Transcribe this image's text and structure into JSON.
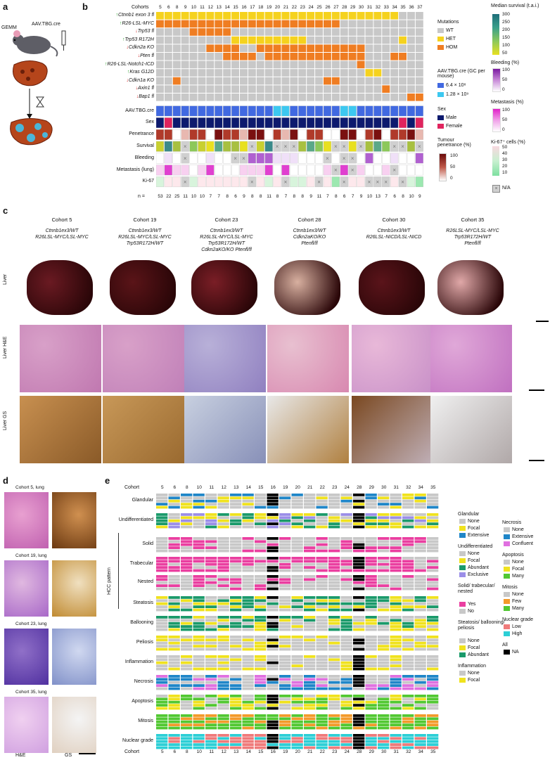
{
  "panels": [
    "a",
    "b",
    "c",
    "d",
    "e"
  ],
  "panel_a": {
    "gemm": "GEMM",
    "vector": "AAV.TBG.cre"
  },
  "panel_b": {
    "cohorts_label": "Cohorts",
    "cohorts": [
      "5",
      "6",
      "8",
      "9",
      "10",
      "11",
      "12",
      "13",
      "14",
      "15",
      "16",
      "17",
      "18",
      "19",
      "20",
      "21",
      "22",
      "23",
      "24",
      "25",
      "26",
      "27",
      "28",
      "29",
      "30",
      "31",
      "32",
      "33",
      "34",
      "35",
      "36",
      "37"
    ],
    "n_label": "n =",
    "n_values": [
      "53",
      "22",
      "25",
      "11",
      "10",
      "10",
      "7",
      "7",
      "8",
      "6",
      "9",
      "8",
      "8",
      "11",
      "8",
      "7",
      "8",
      "8",
      "9",
      "11",
      "7",
      "8",
      "6",
      "7",
      "9",
      "10",
      "13",
      "7",
      "6",
      "8",
      "10",
      "9"
    ],
    "genes": [
      {
        "label": "Ctnnb1 exon 3 fl",
        "dir": "up"
      },
      {
        "label": "R26-LSL-MYC",
        "dir": "up"
      },
      {
        "label": "Trp53 fl",
        "dir": "down"
      },
      {
        "label": "Trp53 R172H",
        "dir": "up"
      },
      {
        "label": "Cdkn2a KO",
        "dir": "down"
      },
      {
        "label": "Pten fl",
        "dir": "down"
      },
      {
        "label": "R26-LSL-Notch1-ICD",
        "dir": "up"
      },
      {
        "label": "Kras G12D",
        "dir": "up"
      },
      {
        "label": "Cdkn1a KO",
        "dir": "down"
      },
      {
        "label": "Axin1 fl",
        "dir": "down"
      },
      {
        "label": "Bap1 fl",
        "dir": "down"
      }
    ],
    "annotation_rows": [
      "AAV.TBG.cre",
      "Sex",
      "Penetrance",
      "Survival",
      "Bleeding",
      "Metastasis (lung)",
      "Ki-67"
    ],
    "legends": {
      "mutations_title": "Mutations",
      "mutations": [
        {
          "label": "WT",
          "color": "#c8c8c8"
        },
        {
          "label": "HET",
          "color": "#f5d21e"
        },
        {
          "label": "HOM",
          "color": "#ef7d22"
        }
      ],
      "aav_title": "AAV.TBG.cre (GC per mouse)",
      "aav": [
        {
          "label": "6.4 × 10⁸",
          "color": "#4169e1"
        },
        {
          "label": "1.28 × 10⁹",
          "color": "#3cc8f0"
        }
      ],
      "sex_title": "Sex",
      "sex": [
        {
          "label": "Male",
          "color": "#0d1a6e"
        },
        {
          "label": "Female",
          "color": "#e0245e"
        }
      ],
      "penetrance_title": "Tumour penetrance (%)",
      "penetrance_ticks": [
        "100",
        "50",
        "0"
      ],
      "survival_title": "Median survival (t.a.i.)",
      "survival_ticks": [
        "300",
        "250",
        "200",
        "150",
        "100",
        "50"
      ],
      "bleeding_title": "Bleeding (%)",
      "bleeding_ticks": [
        "100",
        "50",
        "0"
      ],
      "metastasis_title": "Metastasis (%)",
      "metastasis_ticks": [
        "100",
        "50",
        "0"
      ],
      "ki67_title": "Ki-67⁺ cells (%)",
      "ki67_ticks": [
        "50",
        "40",
        "30",
        "20",
        "10"
      ],
      "na_label": "N/A"
    }
  },
  "panel_c": {
    "cohorts": [
      {
        "title": "Cohort 5",
        "geno": [
          "Ctnnb1ex3/WT",
          "R26LSL-MYC/LSL-MYC"
        ]
      },
      {
        "title": "Cohort 19",
        "geno": [
          "Ctnnb1ex3/WT",
          "R26LSL-MYC/LSL-MYC",
          "Trp53R172H/WT"
        ]
      },
      {
        "title": "Cohort 23",
        "geno": [
          "Ctnnb1ex3/WT",
          "R26LSL-MYC/LSL-MYC",
          "Trp53R172H/WT",
          "Cdkn2aKO/KO Ptenfl/fl"
        ]
      },
      {
        "title": "Cohort 28",
        "geno": [
          "Ctnnb1ex3/WT",
          "Cdkn2aKO/KO",
          "Ptenfl/fl"
        ]
      },
      {
        "title": "Cohort 30",
        "geno": [
          "Ctnnb1ex3/WT",
          "R26LSL-NICD/LSL-NICD"
        ]
      },
      {
        "title": "Cohort 35",
        "geno": [
          "R26LSL-MYC/LSL-MYC",
          "Trp53R172H/WT",
          "Ptenfl/fl"
        ]
      }
    ],
    "rows": [
      "Liver",
      "Liver H&E",
      "Liver GS"
    ]
  },
  "panel_d": {
    "titles": [
      "Cohort 5, lung",
      "Cohort 19, lung",
      "Cohort 23, lung",
      "Cohort 35, lung"
    ],
    "xlabels": [
      "H&E",
      "GS"
    ]
  },
  "panel_e": {
    "cohort_label": "Cohort",
    "cohorts": [
      "5",
      "6",
      "8",
      "10",
      "11",
      "12",
      "13",
      "14",
      "15",
      "16",
      "19",
      "20",
      "21",
      "22",
      "23",
      "24",
      "28",
      "29",
      "30",
      "31",
      "32",
      "34",
      "35"
    ],
    "rows": [
      "Glandular",
      "Undifferentiated",
      "Solid",
      "Trabecular",
      "Nested",
      "Steatosis",
      "Ballooning",
      "Peliosis",
      "Inflammation",
      "Necrosis",
      "Apoptosis",
      "Mitosis",
      "Nuclear grade"
    ],
    "hcc_pattern": "HCC pattern",
    "legend_col1": [
      {
        "title": "Glandular",
        "items": [
          {
            "label": "None",
            "color": "#c8c8c8"
          },
          {
            "label": "Focal",
            "color": "#f0e21e"
          },
          {
            "label": "Extensive",
            "color": "#1f86c8"
          }
        ]
      },
      {
        "title": "Undifferentiated",
        "items": [
          {
            "label": "None",
            "color": "#c8c8c8"
          },
          {
            "label": "Focal",
            "color": "#f0e21e"
          },
          {
            "label": "Abundant",
            "color": "#1a9a6a"
          },
          {
            "label": "Exclusive",
            "color": "#9b8ee8"
          }
        ]
      },
      {
        "title": "Solid/ trabecular/ nested",
        "items": [
          {
            "label": "Yes",
            "color": "#ea3ea0"
          },
          {
            "label": "No",
            "color": "#c8c8c8"
          }
        ]
      },
      {
        "title": "Steatosis/ ballooning/ peliosis",
        "items": [
          {
            "label": "None",
            "color": "#c8c8c8"
          },
          {
            "label": "Focal",
            "color": "#f0e21e"
          },
          {
            "label": "Abundant",
            "color": "#1a9a6a"
          }
        ]
      },
      {
        "title": "Inflammation",
        "items": [
          {
            "label": "None",
            "color": "#c8c8c8"
          },
          {
            "label": "Focal",
            "color": "#f0e21e"
          }
        ]
      }
    ],
    "legend_col2": [
      {
        "title": "Necrosis",
        "items": [
          {
            "label": "None",
            "color": "#c8c8c8"
          },
          {
            "label": "Extensive",
            "color": "#1f86c8"
          },
          {
            "label": "Confluent",
            "color": "#e070e0"
          }
        ]
      },
      {
        "title": "Apoptosis",
        "items": [
          {
            "label": "None",
            "color": "#c8c8c8"
          },
          {
            "label": "Focal",
            "color": "#f0e21e"
          },
          {
            "label": "Many",
            "color": "#52c832"
          }
        ]
      },
      {
        "title": "Mitosis",
        "items": [
          {
            "label": "None",
            "color": "#c8c8c8"
          },
          {
            "label": "Few",
            "color": "#f39a2a"
          },
          {
            "label": "Many",
            "color": "#52c832"
          }
        ]
      },
      {
        "title": "Nuclear grade",
        "items": [
          {
            "label": "Low",
            "color": "#ef7a7a"
          },
          {
            "label": "High",
            "color": "#2ccfd6"
          }
        ]
      },
      {
        "title": "All",
        "items": [
          {
            "label": "NA",
            "color": "#000000"
          }
        ]
      }
    ]
  },
  "scale_bars": "present"
}
